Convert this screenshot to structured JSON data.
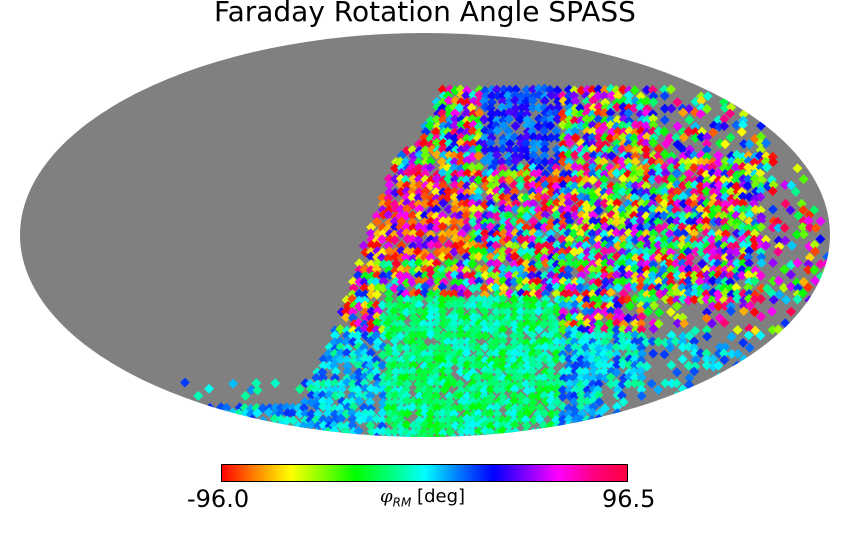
{
  "title": "Faraday Rotation Angle SPASS",
  "colorbar": {
    "min_label": "-96.0",
    "max_label": "96.5",
    "symbol": "φ",
    "subscript": "RM",
    "unit": "[deg]",
    "colormap": "hsv"
  },
  "map": {
    "projection": "Mollweide",
    "background_color": "#808080",
    "masked_color": "#808080"
  }
}
